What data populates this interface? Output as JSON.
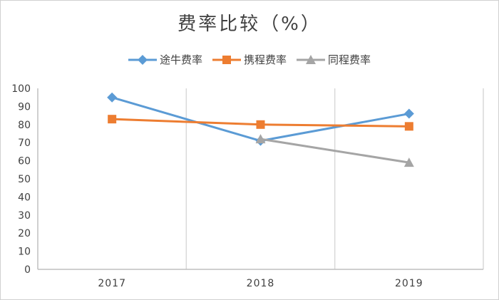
{
  "chart_data": {
    "type": "line",
    "title": "费率比较（%）",
    "categories": [
      "2017",
      "2018",
      "2019"
    ],
    "ylim": [
      0,
      100
    ],
    "yticks": [
      0,
      10,
      20,
      30,
      40,
      50,
      60,
      70,
      80,
      90,
      100
    ],
    "grid": "vertical",
    "legend_position": "top",
    "series": [
      {
        "name": "途牛费率",
        "values": [
          95,
          71,
          86
        ],
        "color": "#5b9bd5",
        "marker": "diamond"
      },
      {
        "name": "携程费率",
        "values": [
          83,
          80,
          79
        ],
        "color": "#ed7d31",
        "marker": "square"
      },
      {
        "name": "同程费率",
        "values": [
          null,
          72,
          59
        ],
        "color": "#a5a5a5",
        "marker": "triangle"
      }
    ]
  }
}
